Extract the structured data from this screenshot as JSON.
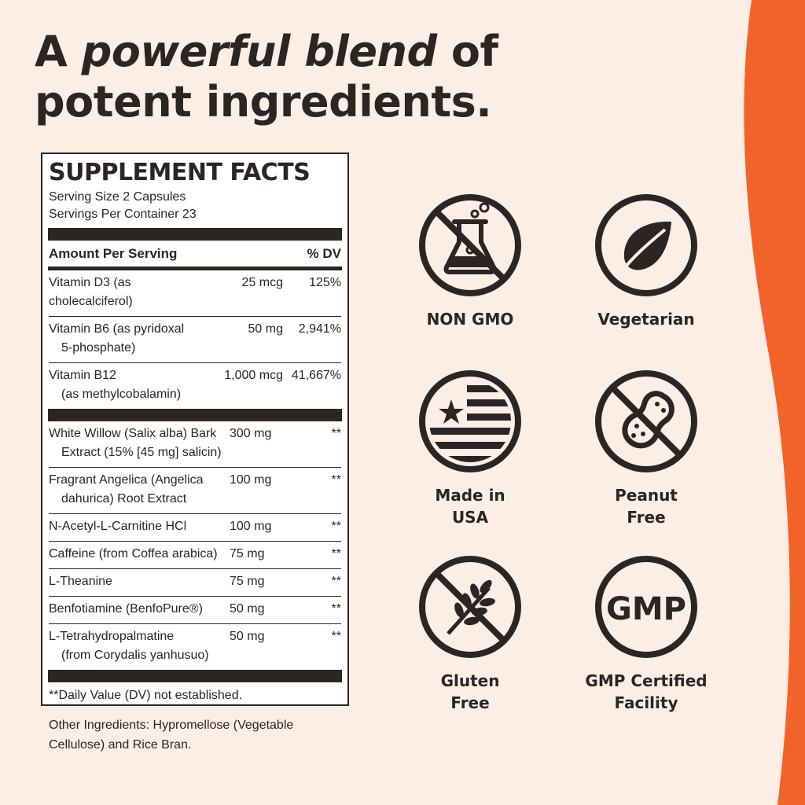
{
  "colors": {
    "background": "#fdeee5",
    "accent": "#f2632a",
    "ink": "#2b2523"
  },
  "headline": {
    "prefix": "A ",
    "emphasis": "powerful blend",
    "suffix": " of",
    "line2": "potent ingredients."
  },
  "facts": {
    "title": "SUPPLEMENT FACTS",
    "serving_size": "Serving Size 2 Capsules",
    "servings_per_container": "Servings Per Container 23",
    "amount_header": "Amount Per Serving",
    "dv_header": "% DV",
    "vitamins": [
      {
        "name": "Vitamin D3 (as cholecalciferol)",
        "sub": "",
        "amount": "25 mcg",
        "dv": "125%"
      },
      {
        "name": "Vitamin B6 (as pyridoxal",
        "sub": "5-phosphate)",
        "amount": "50 mg",
        "dv": "2,941%"
      },
      {
        "name": "Vitamin B12",
        "sub": "(as methylcobalamin)",
        "amount": "1,000 mcg",
        "dv": "41,667%"
      }
    ],
    "ingredients": [
      {
        "name": "White Willow (Salix alba) Bark",
        "sub": "Extract (15% [45 mg] salicin)",
        "amount": "300 mg",
        "dv": "**"
      },
      {
        "name": "Fragrant Angelica (Angelica",
        "sub": "dahurica) Root Extract",
        "amount": "100 mg",
        "dv": "**"
      },
      {
        "name": "N-Acetyl-L-Carnitine HCl",
        "sub": "",
        "amount": "100 mg",
        "dv": "**"
      },
      {
        "name": "Caffeine (from Coffea arabica)",
        "sub": "",
        "amount": "75 mg",
        "dv": "**"
      },
      {
        "name": "L-Theanine",
        "sub": "",
        "amount": "75 mg",
        "dv": "**"
      },
      {
        "name": "Benfotiamine (BenfoPure®)",
        "sub": "",
        "amount": "50 mg",
        "dv": "**"
      },
      {
        "name": "L-Tetrahydropalmatine",
        "sub": "(from Corydalis yanhusuo)",
        "amount": "50 mg",
        "dv": "**"
      }
    ],
    "footnote": "**Daily Value (DV) not established."
  },
  "other_ingredients": "Other Ingredients: Hypromellose (Vegetable Cellulose) and Rice Bran.",
  "badges": [
    {
      "icon": "flask-crossed-icon",
      "label1": "NON GMO",
      "label2": ""
    },
    {
      "icon": "leaf-icon",
      "label1": "Vegetarian",
      "label2": ""
    },
    {
      "icon": "usa-flag-icon",
      "label1": "Made in",
      "label2": "USA"
    },
    {
      "icon": "peanut-crossed-icon",
      "label1": "Peanut",
      "label2": "Free"
    },
    {
      "icon": "wheat-crossed-icon",
      "label1": "Gluten",
      "label2": "Free"
    },
    {
      "icon": "gmp-icon",
      "label1": "GMP Certified",
      "label2": "Facility",
      "icon_text": "GMP"
    }
  ]
}
